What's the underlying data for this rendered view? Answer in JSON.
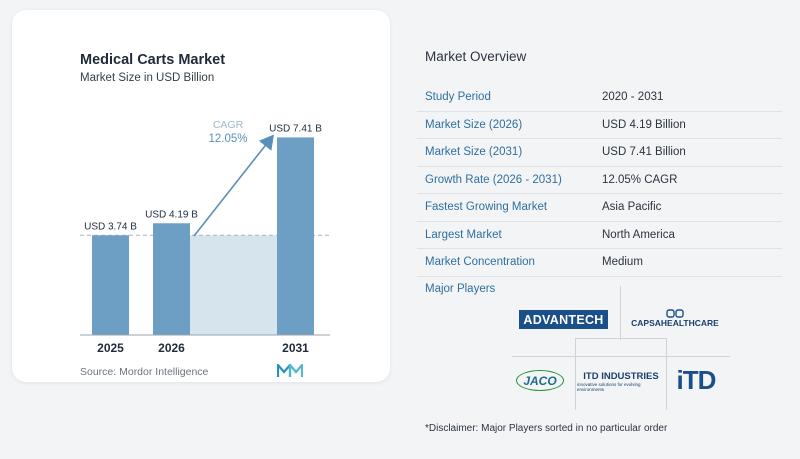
{
  "chart_data": {
    "type": "bar",
    "title": "Medical Carts Market",
    "subtitle": "Market Size in USD Billion",
    "categories": [
      "2025",
      "2026",
      "2031"
    ],
    "values": [
      3.74,
      4.19,
      7.41
    ],
    "data_labels": [
      "USD 3.74 B",
      "USD 4.19 B",
      "USD 7.41 B"
    ],
    "annotation": {
      "label": "CAGR",
      "value": "12.05%"
    },
    "ylim": [
      0,
      7.8
    ],
    "reference_line": 3.74,
    "grid": false,
    "source": "Source:  Mordor Intelligence",
    "colors": {
      "bar": "#6d9fc4",
      "band": "#d6e4ee",
      "arrow": "#5a8fba",
      "cagr_label": "#9fb7c9",
      "cagr_value": "#5a8fba"
    }
  },
  "overview": {
    "title": "Market Overview",
    "rows": [
      {
        "key": "Study Period",
        "value": "2020 - 2031"
      },
      {
        "key": "Market Size (2026)",
        "value": "USD 4.19 Billion"
      },
      {
        "key": "Market Size (2031)",
        "value": "USD 7.41 Billion"
      },
      {
        "key": "Growth Rate (2026 - 2031)",
        "value": "12.05% CAGR"
      },
      {
        "key": "Fastest Growing Market",
        "value": "Asia Pacific"
      },
      {
        "key": "Largest Market",
        "value": "North America"
      },
      {
        "key": "Market Concentration",
        "value": "Medium"
      }
    ]
  },
  "players": {
    "label": "Major Players",
    "logos": {
      "advantech": "ADVANTECH",
      "capsa": "CAPSAHEALTHCARE",
      "jaco": "JACO",
      "itd": "ITD INDUSTRIES",
      "itd_tagline": "innovative solutions for evolving environments",
      "itd_mark": "iTD"
    }
  },
  "disclaimer": "*Disclaimer: Major Players sorted in no particular order"
}
